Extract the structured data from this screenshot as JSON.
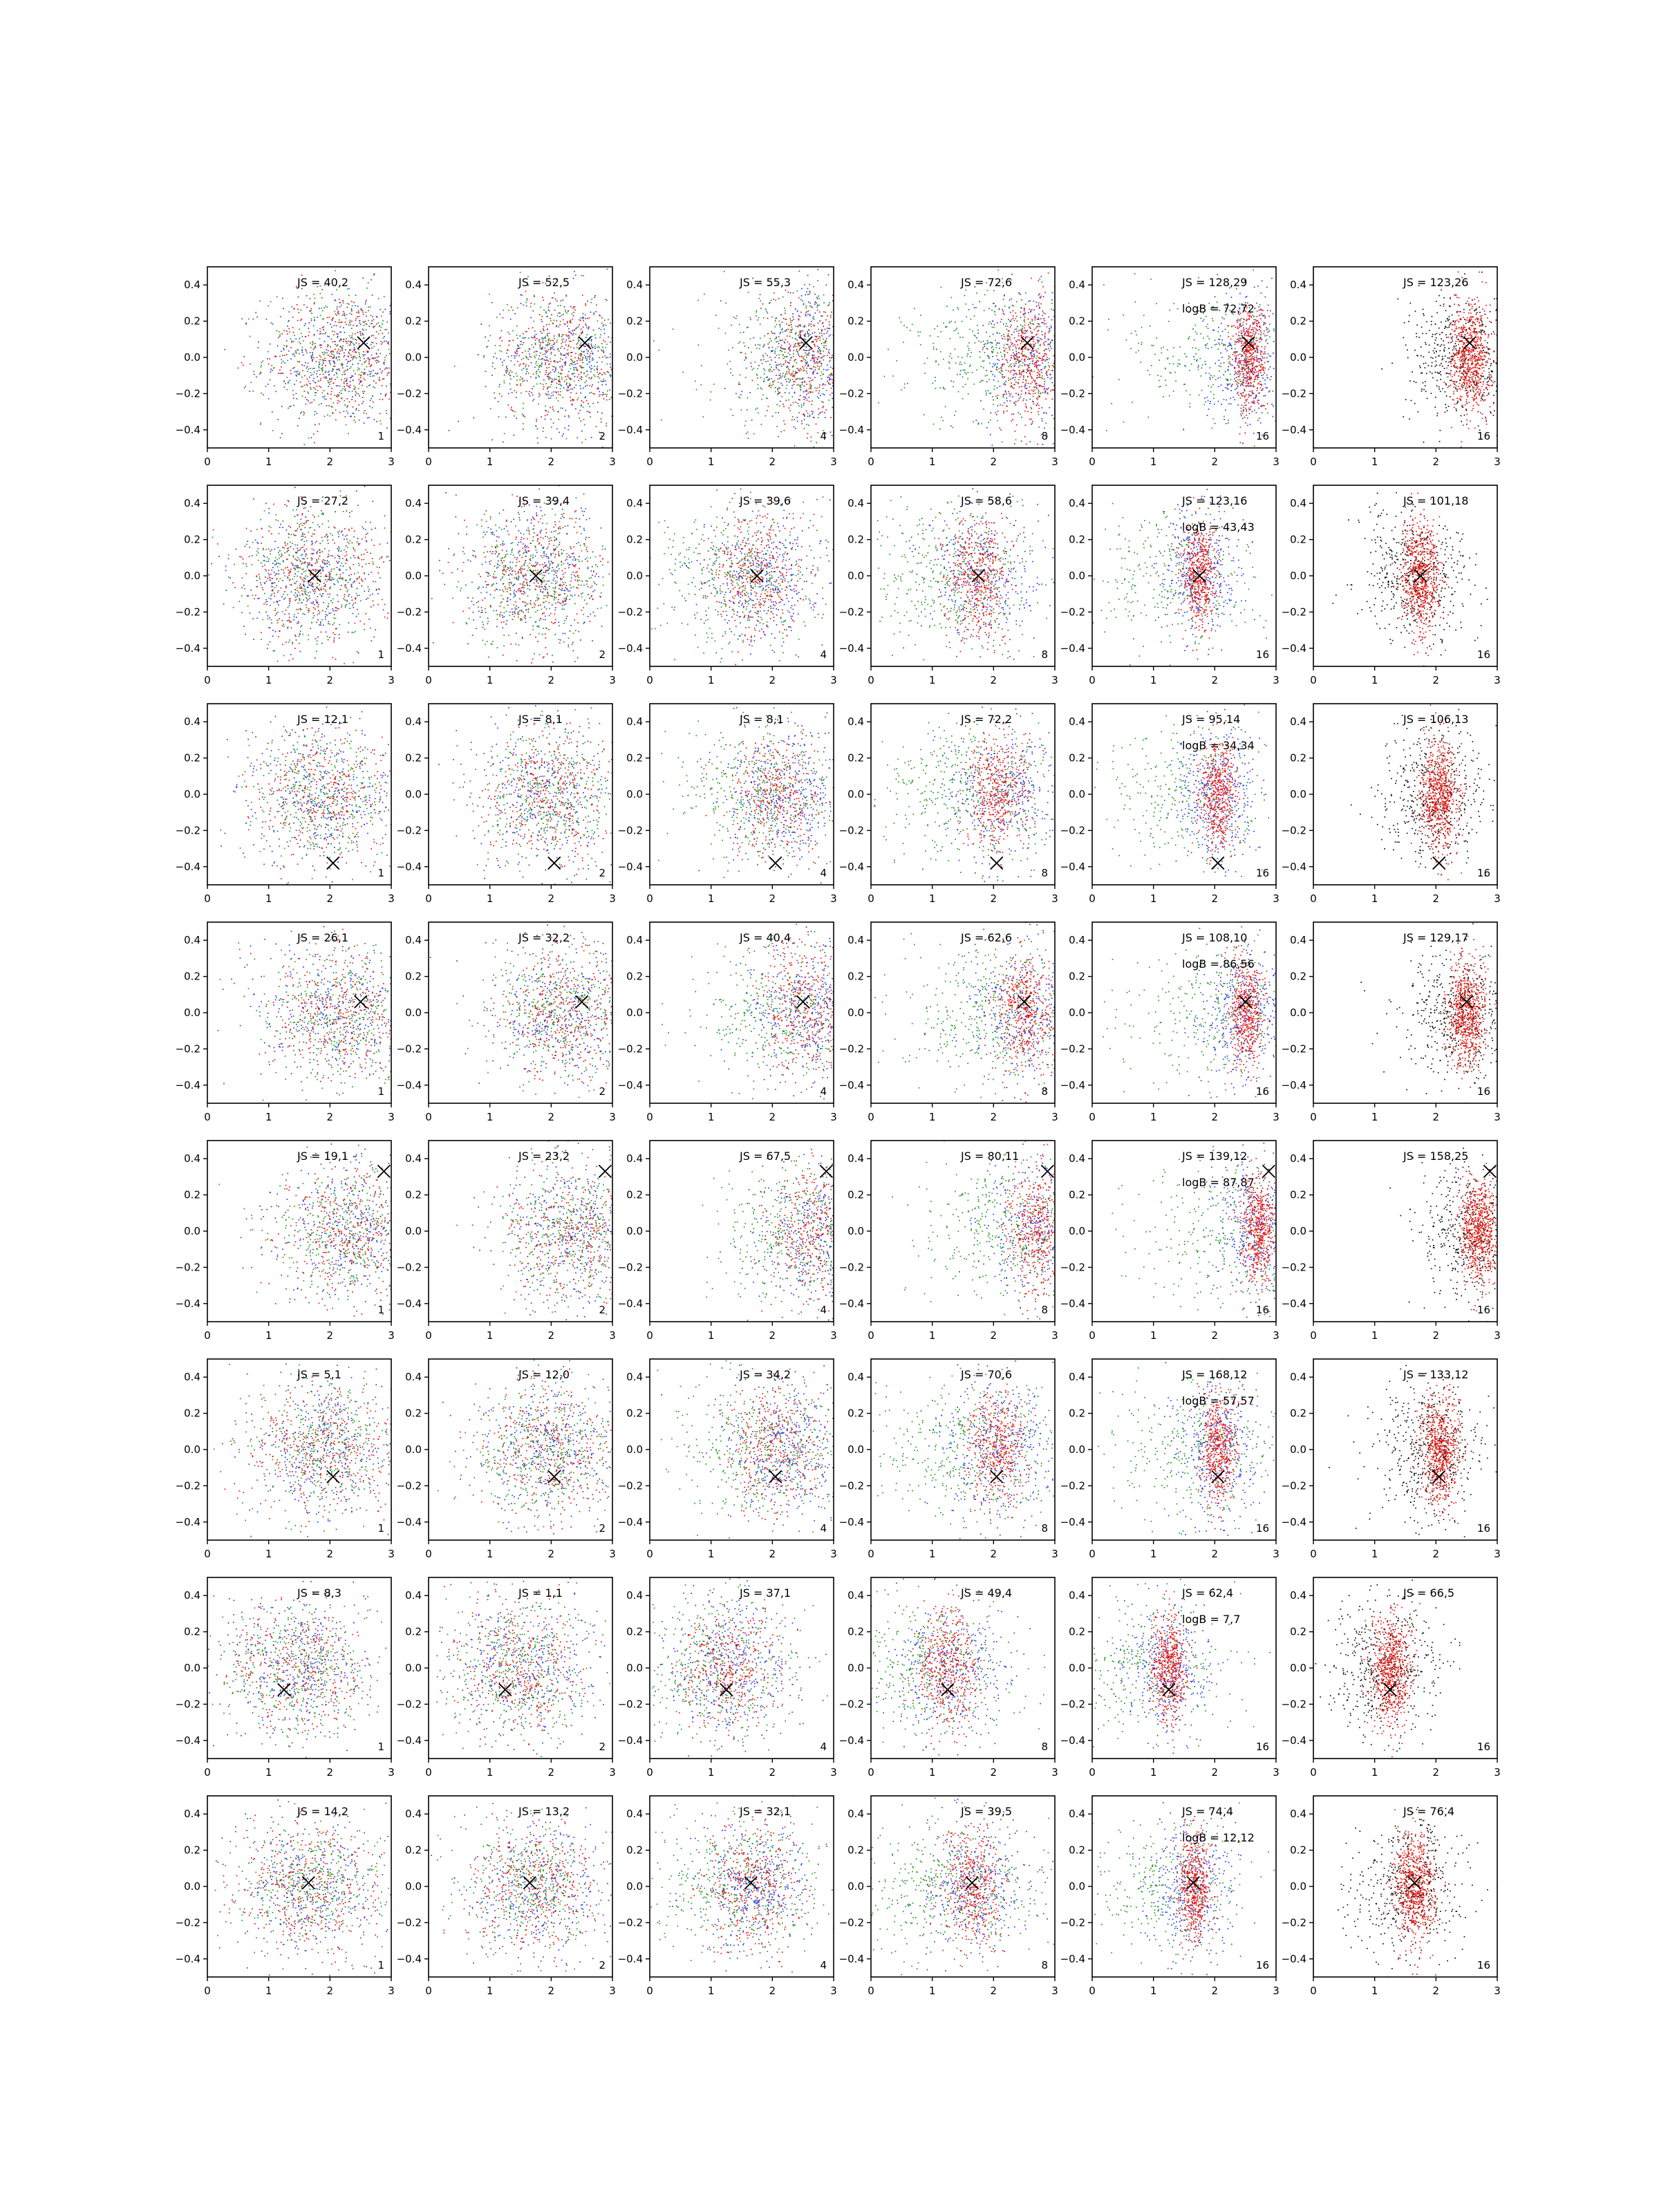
{
  "figure": {
    "rows": 8,
    "cols": 6
  },
  "chart_data": {
    "type": "scatter",
    "xlim": [
      0,
      3
    ],
    "ylim": [
      -0.5,
      0.5
    ],
    "xticks": [
      "0",
      "1",
      "2",
      "3"
    ],
    "yticks": [
      "0.4",
      "0.2",
      "0.0",
      "−0.2",
      "−0.4"
    ],
    "ytick_values": [
      0.4,
      0.2,
      0.0,
      -0.2,
      -0.4
    ],
    "grid": false,
    "colors": {
      "red": "#e8160f",
      "green": "#1f9a1f",
      "blue": "#2b3ee8",
      "black": "#111111"
    },
    "panel_corner_labels": [
      "1",
      "2",
      "4",
      "8",
      "16",
      "16"
    ],
    "rows": [
      {
        "marker": [
          2.55,
          0.08
        ],
        "js": [
          "JS = 40,2",
          "JS = 52,5",
          "JS = 55,3",
          "JS = 72,6",
          "JS = 128,29",
          "JS = 123,26"
        ],
        "logb": "logB = 72,72"
      },
      {
        "marker": [
          1.75,
          0.0
        ],
        "js": [
          "JS = 27,2",
          "JS = 39,4",
          "JS = 39,6",
          "JS = 58,6",
          "JS = 123,16",
          "JS = 101,18"
        ],
        "logb": "logB = 43,43"
      },
      {
        "marker": [
          2.05,
          -0.38
        ],
        "js": [
          "JS = 12,1",
          "JS = 8,1",
          "JS = 8,1",
          "JS = 72,2",
          "JS = 95,14",
          "JS = 106,13"
        ],
        "logb": "logB = 34,34"
      },
      {
        "marker": [
          2.5,
          0.06
        ],
        "js": [
          "JS = 26,1",
          "JS = 32,2",
          "JS = 40,4",
          "JS = 62,6",
          "JS = 108,10",
          "JS = 129,17"
        ],
        "logb": "logB = 86,56"
      },
      {
        "marker": [
          2.88,
          0.33
        ],
        "js": [
          "JS = 19,1",
          "JS = 23,2",
          "JS = 67,5",
          "JS = 80,11",
          "JS = 139,12",
          "JS = 158,25"
        ],
        "logb": "logB = 87,87"
      },
      {
        "marker": [
          2.05,
          -0.15
        ],
        "js": [
          "JS = 5,1",
          "JS = 12,0",
          "JS = 34,2",
          "JS = 70,6",
          "JS = 168,12",
          "JS = 133,12"
        ],
        "logb": "logB = 57,57"
      },
      {
        "marker": [
          1.25,
          -0.12
        ],
        "js": [
          "JS = 8,3",
          "JS = 1,1",
          "JS = 37,1",
          "JS = 49,4",
          "JS = 62,4",
          "JS = 66,5"
        ],
        "logb": "logB = 7,7"
      },
      {
        "marker": [
          1.65,
          0.02
        ],
        "js": [
          "JS = 14,2",
          "JS = 13,2",
          "JS = 32,1",
          "JS = 39,5",
          "JS = 74,4",
          "JS = 76,4"
        ],
        "logb": "logB = 12,12"
      }
    ]
  }
}
